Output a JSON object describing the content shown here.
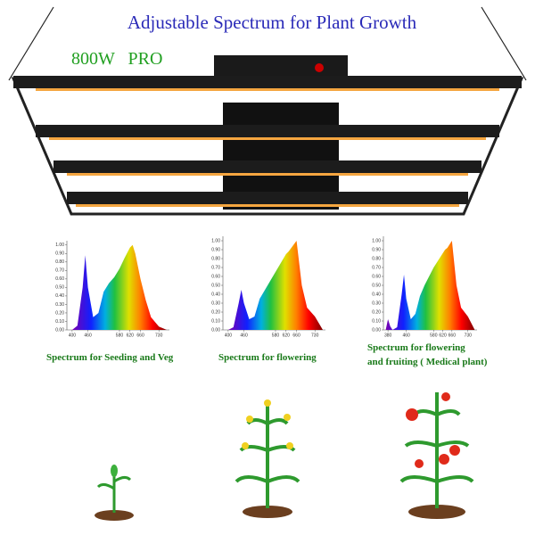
{
  "title": "Adjustable Spectrum for Plant Growth",
  "badge": "800W   PRO",
  "chart_data": [
    {
      "type": "area",
      "caption": [
        "Spectrum for Seeding and Veg"
      ],
      "x": [
        400,
        420,
        440,
        450,
        460,
        480,
        500,
        520,
        540,
        560,
        580,
        600,
        620,
        630,
        640,
        660,
        680,
        700,
        730,
        760
      ],
      "values": [
        0,
        0.05,
        0.5,
        0.88,
        0.5,
        0.15,
        0.2,
        0.45,
        0.55,
        0.62,
        0.72,
        0.85,
        0.97,
        1.0,
        0.9,
        0.6,
        0.35,
        0.15,
        0.04,
        0
      ],
      "xlim": [
        380,
        770
      ],
      "xticks": [
        400,
        460,
        580,
        620,
        660,
        730
      ],
      "ylim": [
        0,
        1.05
      ],
      "yticks": [
        {
          "value": 0,
          "label": "0.00"
        },
        {
          "value": 0.1,
          "label": "0.10"
        },
        {
          "value": 0.2,
          "label": "0.20"
        },
        {
          "value": 0.3,
          "label": "0.30"
        },
        {
          "value": 0.4,
          "label": "0.40"
        },
        {
          "value": 0.5,
          "label": "0.50"
        },
        {
          "value": 0.6,
          "label": "0.60"
        },
        {
          "value": 0.7,
          "label": "0.70"
        },
        {
          "value": 0.8,
          "label": "0.80"
        },
        {
          "value": 0.9,
          "label": "0.90"
        },
        {
          "value": 1,
          "label": "1.00"
        }
      ]
    },
    {
      "type": "area",
      "caption": [
        "Spectrum for flowering"
      ],
      "x": [
        400,
        420,
        440,
        450,
        460,
        480,
        500,
        520,
        540,
        560,
        580,
        600,
        620,
        630,
        640,
        660,
        680,
        700,
        730,
        760
      ],
      "values": [
        0,
        0.03,
        0.3,
        0.45,
        0.3,
        0.12,
        0.15,
        0.35,
        0.45,
        0.55,
        0.65,
        0.75,
        0.85,
        0.88,
        0.92,
        1.0,
        0.5,
        0.25,
        0.15,
        0
      ],
      "xlim": [
        380,
        770
      ],
      "xticks": [
        400,
        460,
        580,
        620,
        660,
        730
      ],
      "ylim": [
        0,
        1.05
      ],
      "yticks": [
        {
          "value": 0,
          "label": "0.00"
        },
        {
          "value": 0.1,
          "label": "0.10"
        },
        {
          "value": 0.2,
          "label": "0.20"
        },
        {
          "value": 0.3,
          "label": "0.30"
        },
        {
          "value": 0.4,
          "label": "0.40"
        },
        {
          "value": 0.5,
          "label": "0.50"
        },
        {
          "value": 0.6,
          "label": "0.60"
        },
        {
          "value": 0.7,
          "label": "0.70"
        },
        {
          "value": 0.8,
          "label": "0.80"
        },
        {
          "value": 0.9,
          "label": "0.90"
        },
        {
          "value": 1,
          "label": "1.00"
        }
      ]
    },
    {
      "type": "area",
      "caption": [
        "Spectrum for flowering",
        "and fruiting ( Medical plant)"
      ],
      "x": [
        370,
        380,
        390,
        400,
        420,
        440,
        450,
        460,
        480,
        500,
        520,
        540,
        560,
        580,
        600,
        620,
        630,
        640,
        660,
        680,
        700,
        730,
        760
      ],
      "values": [
        0,
        0.12,
        0.04,
        0,
        0.03,
        0.4,
        0.62,
        0.35,
        0.12,
        0.18,
        0.38,
        0.5,
        0.6,
        0.7,
        0.78,
        0.86,
        0.9,
        0.92,
        1.0,
        0.5,
        0.25,
        0.15,
        0
      ],
      "xlim": [
        360,
        770
      ],
      "xticks": [
        380,
        460,
        580,
        620,
        660,
        730
      ],
      "ylim": [
        0,
        1.05
      ],
      "yticks": [
        {
          "value": 0,
          "label": "0.00"
        },
        {
          "value": 0.1,
          "label": "0.10"
        },
        {
          "value": 0.2,
          "label": "0.20"
        },
        {
          "value": 0.3,
          "label": "0.30"
        },
        {
          "value": 0.4,
          "label": "0.40"
        },
        {
          "value": 0.5,
          "label": "0.50"
        },
        {
          "value": 0.6,
          "label": "0.60"
        },
        {
          "value": 0.7,
          "label": "0.70"
        },
        {
          "value": 0.8,
          "label": "0.80"
        },
        {
          "value": 0.9,
          "label": "0.90"
        },
        {
          "value": 1,
          "label": "1.00"
        }
      ]
    }
  ]
}
